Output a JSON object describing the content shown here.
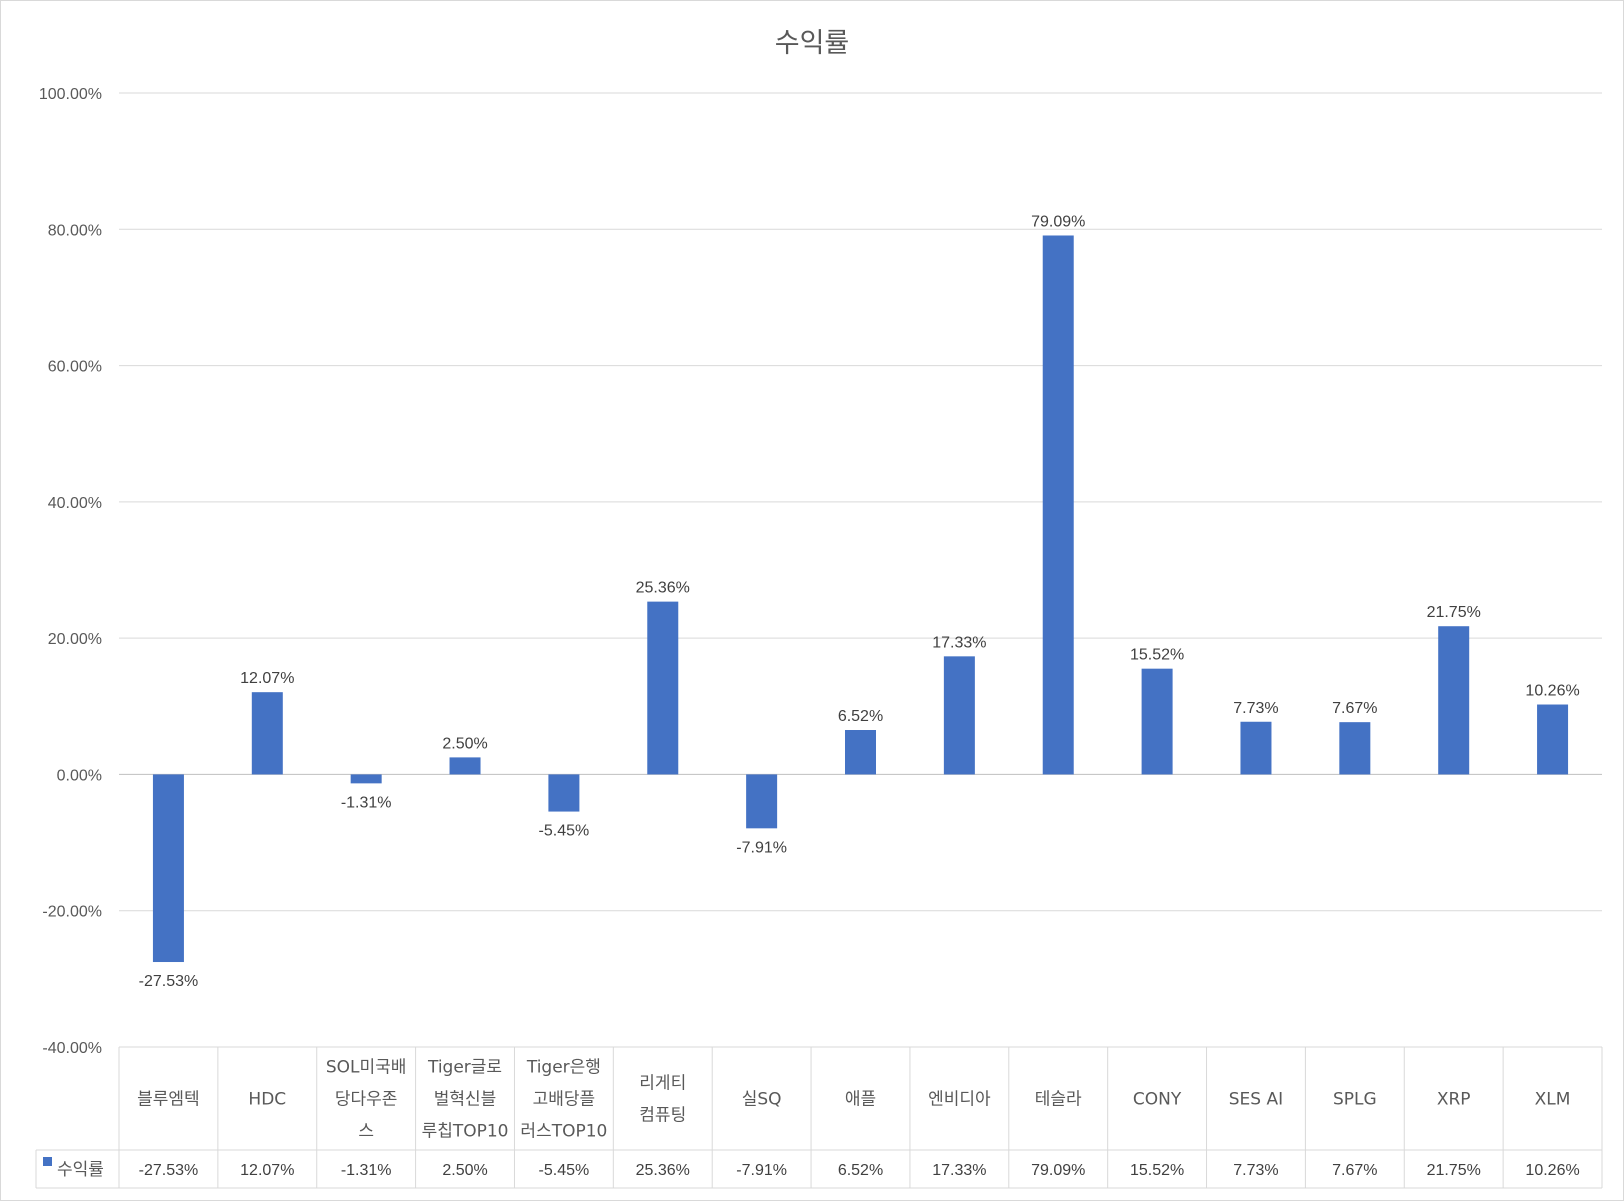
{
  "chart_data": {
    "type": "bar",
    "title": "수익률",
    "xlabel": "",
    "ylabel": "",
    "ylim": [
      -40,
      100
    ],
    "yticks": [
      100,
      80,
      60,
      40,
      20,
      0,
      -20,
      -40
    ],
    "ytick_labels": [
      "100.00%",
      "80.00%",
      "60.00%",
      "40.00%",
      "20.00%",
      "0.00%",
      "-20.00%",
      "-40.00%"
    ],
    "grid": true,
    "legend": "data-table",
    "categories": [
      "블루엠텍",
      "HDC",
      "SOL미국배당다우존스",
      "Tiger글로벌혁신블루칩TOP10",
      "Tiger은행고배당플러스TOP10",
      "리게티컴퓨팅",
      "실SQ",
      "애플",
      "엔비디아",
      "테슬라",
      "CONY",
      "SES AI",
      "SPLG",
      "XRP",
      "XLM"
    ],
    "category_lines": [
      [
        "블루엠텍"
      ],
      [
        "HDC"
      ],
      [
        "SOL미국배",
        "당다우존",
        "스"
      ],
      [
        "Tiger글로",
        "벌혁신블",
        "루칩TOP10"
      ],
      [
        "Tiger은행",
        "고배당플",
        "러스TOP10"
      ],
      [
        "리게티",
        "컴퓨팅"
      ],
      [
        "실SQ"
      ],
      [
        "애플"
      ],
      [
        "엔비디아"
      ],
      [
        "테슬라"
      ],
      [
        "CONY"
      ],
      [
        "SES AI"
      ],
      [
        "SPLG"
      ],
      [
        "XRP"
      ],
      [
        "XLM"
      ]
    ],
    "series": [
      {
        "name": "수익률",
        "color": "#4472C4",
        "values": [
          -27.53,
          12.07,
          -1.31,
          2.5,
          -5.45,
          25.36,
          -7.91,
          6.52,
          17.33,
          79.09,
          15.52,
          7.73,
          7.67,
          21.75,
          10.26
        ],
        "labels": [
          "-27.53%",
          "12.07%",
          "-1.31%",
          "2.50%",
          "-5.45%",
          "25.36%",
          "-7.91%",
          "6.52%",
          "17.33%",
          "79.09%",
          "15.52%",
          "7.73%",
          "7.67%",
          "21.75%",
          "10.26%"
        ]
      }
    ]
  }
}
